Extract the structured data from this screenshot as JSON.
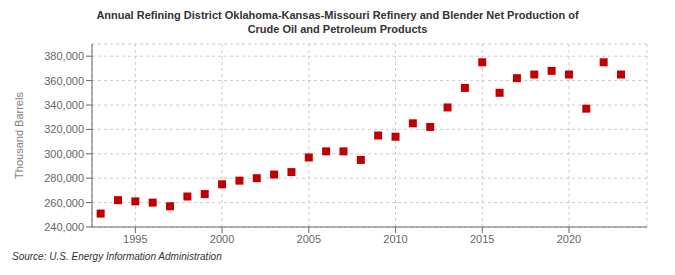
{
  "chart_data": {
    "type": "scatter",
    "title": "Annual Refining District Oklahoma-Kansas-Missouri Refinery and Blender Net Production of\nCrude Oil and Petroleum Products",
    "ylabel": "Thousand Barrels",
    "annotations": [
      "Source: U.S. Energy Information Administration"
    ],
    "x": [
      1993,
      1994,
      1995,
      1996,
      1997,
      1998,
      1999,
      2000,
      2001,
      2002,
      2003,
      2004,
      2005,
      2006,
      2007,
      2008,
      2009,
      2010,
      2011,
      2012,
      2013,
      2014,
      2015,
      2016,
      2017,
      2018,
      2019,
      2020,
      2021,
      2022,
      2023
    ],
    "values": [
      251000,
      262000,
      261000,
      260000,
      257000,
      265000,
      267000,
      275000,
      278000,
      280000,
      283000,
      285000,
      297000,
      302000,
      302000,
      295000,
      315000,
      314000,
      325000,
      322000,
      338000,
      354000,
      375000,
      350000,
      362000,
      365000,
      368000,
      365000,
      337000,
      375000,
      365000
    ],
    "color": "#c00000",
    "marker": "square",
    "xlim": [
      1992.5,
      2024.5
    ],
    "xticks": [
      1995,
      2000,
      2005,
      2010,
      2015,
      2020
    ],
    "ylim": [
      240000,
      390000
    ],
    "yticks": [
      {
        "value": 240000,
        "label": "240,000"
      },
      {
        "value": 260000,
        "label": "260,000"
      },
      {
        "value": 280000,
        "label": "280,000"
      },
      {
        "value": 300000,
        "label": "300,000"
      },
      {
        "value": 320000,
        "label": "320,000"
      },
      {
        "value": 340000,
        "label": "340,000"
      },
      {
        "value": 360000,
        "label": "360,000"
      },
      {
        "value": 380000,
        "label": "380,000"
      }
    ],
    "grid": true
  }
}
